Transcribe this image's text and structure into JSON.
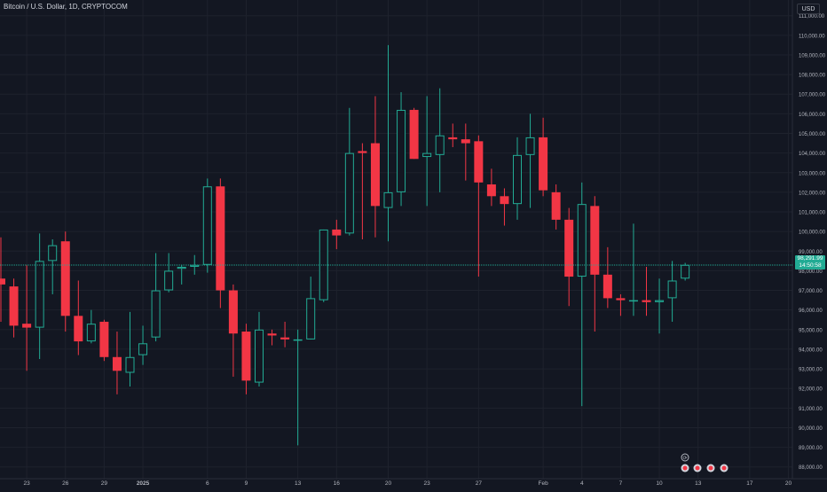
{
  "header": {
    "title": "Bitcoin / U.S. Dollar, 1D, CRYPTOCOM",
    "currency": "USD"
  },
  "last_price": {
    "value": "98,291.99",
    "countdown": "14:50:58"
  },
  "colors": {
    "background": "#131722",
    "up": "#22ab94",
    "down": "#f23645",
    "grid": "#1e222d",
    "axis_text": "#b2b5be"
  },
  "chart_data": {
    "type": "candlestick",
    "title": "Bitcoin / U.S. Dollar, 1D, CRYPTOCOM",
    "xlabel": "",
    "ylabel": "",
    "ylim": [
      87400,
      111800
    ],
    "y_ticks": [
      88000,
      89000,
      90000,
      91000,
      92000,
      93000,
      94000,
      95000,
      96000,
      97000,
      98000,
      99000,
      100000,
      101000,
      102000,
      103000,
      104000,
      105000,
      106000,
      107000,
      108000,
      109000,
      110000,
      111000
    ],
    "x_tick_labels": [
      {
        "label": "23",
        "index": 2
      },
      {
        "label": "26",
        "index": 5
      },
      {
        "label": "29",
        "index": 8
      },
      {
        "label": "2025",
        "index": 11
      },
      {
        "label": "6",
        "index": 16
      },
      {
        "label": "9",
        "index": 19
      },
      {
        "label": "13",
        "index": 23
      },
      {
        "label": "16",
        "index": 26
      },
      {
        "label": "20",
        "index": 30
      },
      {
        "label": "23",
        "index": 33
      },
      {
        "label": "27",
        "index": 37
      },
      {
        "label": "Feb",
        "index": 42
      },
      {
        "label": "4",
        "index": 45
      },
      {
        "label": "7",
        "index": 48
      },
      {
        "label": "10",
        "index": 51
      },
      {
        "label": "13",
        "index": 54
      },
      {
        "label": "17",
        "index": 58
      },
      {
        "label": "20",
        "index": 61
      }
    ],
    "candles": [
      {
        "o": 97600,
        "h": 99700,
        "l": 95400,
        "c": 97300
      },
      {
        "o": 97200,
        "h": 97600,
        "l": 94600,
        "c": 95200
      },
      {
        "o": 95300,
        "h": 98300,
        "l": 92900,
        "c": 95100
      },
      {
        "o": 95100,
        "h": 99900,
        "l": 93500,
        "c": 98500
      },
      {
        "o": 98500,
        "h": 99600,
        "l": 96800,
        "c": 99300
      },
      {
        "o": 99500,
        "h": 100000,
        "l": 94900,
        "c": 95700
      },
      {
        "o": 95700,
        "h": 97500,
        "l": 93700,
        "c": 94400
      },
      {
        "o": 94400,
        "h": 96000,
        "l": 94300,
        "c": 95300
      },
      {
        "o": 95400,
        "h": 95500,
        "l": 93400,
        "c": 93600
      },
      {
        "o": 93600,
        "h": 94900,
        "l": 91700,
        "c": 92900
      },
      {
        "o": 92800,
        "h": 95900,
        "l": 92100,
        "c": 93600
      },
      {
        "o": 93700,
        "h": 95200,
        "l": 93200,
        "c": 94300
      },
      {
        "o": 94600,
        "h": 98900,
        "l": 94400,
        "c": 97000
      },
      {
        "o": 97000,
        "h": 98900,
        "l": 96900,
        "c": 98000
      },
      {
        "o": 98100,
        "h": 98300,
        "l": 97300,
        "c": 98200
      },
      {
        "o": 98200,
        "h": 98800,
        "l": 97800,
        "c": 98300
      },
      {
        "o": 98300,
        "h": 102700,
        "l": 97900,
        "c": 102300
      },
      {
        "o": 102300,
        "h": 102700,
        "l": 96100,
        "c": 97000
      },
      {
        "o": 97000,
        "h": 97300,
        "l": 92600,
        "c": 94800
      },
      {
        "o": 94900,
        "h": 95300,
        "l": 91700,
        "c": 92400
      },
      {
        "o": 92300,
        "h": 95900,
        "l": 92100,
        "c": 95000
      },
      {
        "o": 94800,
        "h": 95000,
        "l": 94200,
        "c": 94700
      },
      {
        "o": 94600,
        "h": 95400,
        "l": 94100,
        "c": 94500
      },
      {
        "o": 94500,
        "h": 95000,
        "l": 89100,
        "c": 94500
      },
      {
        "o": 94500,
        "h": 97700,
        "l": 94500,
        "c": 96600
      },
      {
        "o": 96500,
        "h": 100100,
        "l": 96400,
        "c": 100100
      },
      {
        "o": 100100,
        "h": 100600,
        "l": 99100,
        "c": 99800
      },
      {
        "o": 99900,
        "h": 106300,
        "l": 99800,
        "c": 104000
      },
      {
        "o": 104100,
        "h": 104500,
        "l": 99600,
        "c": 104000
      },
      {
        "o": 104500,
        "h": 106900,
        "l": 99700,
        "c": 101300
      },
      {
        "o": 101200,
        "h": 109500,
        "l": 99500,
        "c": 102000
      },
      {
        "o": 102000,
        "h": 107100,
        "l": 101300,
        "c": 106200
      },
      {
        "o": 106200,
        "h": 106300,
        "l": 103700,
        "c": 103700
      },
      {
        "o": 103800,
        "h": 106900,
        "l": 101300,
        "c": 104000
      },
      {
        "o": 103900,
        "h": 107300,
        "l": 102000,
        "c": 104900
      },
      {
        "o": 104800,
        "h": 105500,
        "l": 104300,
        "c": 104700
      },
      {
        "o": 104700,
        "h": 105500,
        "l": 102600,
        "c": 104500
      },
      {
        "o": 104600,
        "h": 104900,
        "l": 97700,
        "c": 102500
      },
      {
        "o": 102400,
        "h": 103200,
        "l": 101300,
        "c": 101800
      },
      {
        "o": 101800,
        "h": 102200,
        "l": 100300,
        "c": 101400
      },
      {
        "o": 101400,
        "h": 104800,
        "l": 100600,
        "c": 103900
      },
      {
        "o": 103900,
        "h": 106000,
        "l": 101200,
        "c": 104800
      },
      {
        "o": 104800,
        "h": 105800,
        "l": 101800,
        "c": 102100
      },
      {
        "o": 102000,
        "h": 102400,
        "l": 100100,
        "c": 100600
      },
      {
        "o": 100600,
        "h": 101200,
        "l": 96200,
        "c": 97700
      },
      {
        "o": 97700,
        "h": 102500,
        "l": 91100,
        "c": 101400
      },
      {
        "o": 101300,
        "h": 101800,
        "l": 94900,
        "c": 97800
      },
      {
        "o": 97800,
        "h": 99200,
        "l": 96100,
        "c": 96600
      },
      {
        "o": 96600,
        "h": 96800,
        "l": 95700,
        "c": 96500
      },
      {
        "o": 96500,
        "h": 100400,
        "l": 95700,
        "c": 96500
      },
      {
        "o": 96500,
        "h": 98200,
        "l": 95700,
        "c": 96400
      },
      {
        "o": 96400,
        "h": 97600,
        "l": 94800,
        "c": 96500
      },
      {
        "o": 96600,
        "h": 98500,
        "l": 95400,
        "c": 97500
      },
      {
        "o": 97600,
        "h": 98400,
        "l": 97500,
        "c": 98300
      }
    ],
    "grid": true,
    "last_price_line": 98291.99
  }
}
